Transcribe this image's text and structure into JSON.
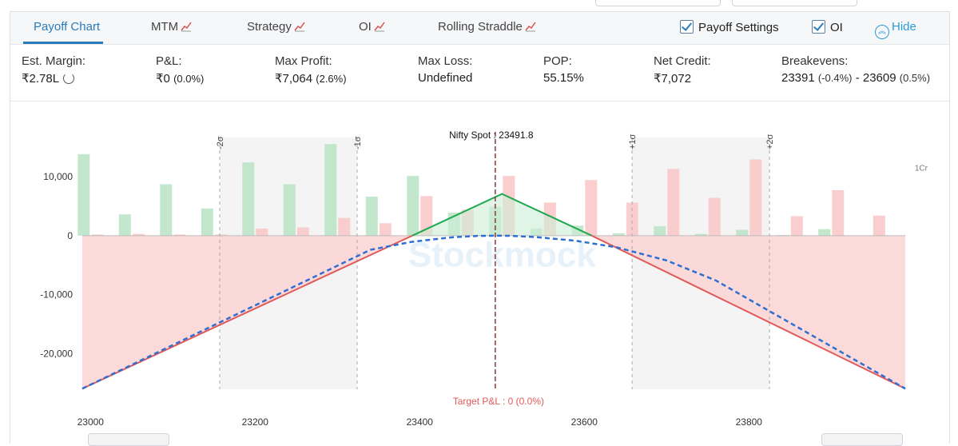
{
  "tabs": [
    {
      "label": "Payoff Chart",
      "active": true,
      "icon": ""
    },
    {
      "label": "MTM",
      "active": false,
      "icon": "chart-icon"
    },
    {
      "label": "Strategy",
      "active": false,
      "icon": "chart-icon"
    },
    {
      "label": "OI",
      "active": false,
      "icon": "chart-icon"
    },
    {
      "label": "Rolling Straddle",
      "active": false,
      "icon": "chart-icon"
    }
  ],
  "toggles": {
    "payoff_settings": {
      "label": "Payoff Settings",
      "checked": true
    },
    "oi": {
      "label": "OI",
      "checked": true
    },
    "hide": {
      "label": "Hide",
      "icon": "chevron-up-icon"
    }
  },
  "stats": {
    "margin": {
      "label": "Est. Margin:",
      "value": "₹2.78L"
    },
    "pnl": {
      "label": "P&L:",
      "value": "₹0",
      "pct": "(0.0%)"
    },
    "max_profit": {
      "label": "Max Profit:",
      "value": "₹7,064",
      "pct": "(2.6%)"
    },
    "max_loss": {
      "label": "Max Loss:",
      "value": "Undefined"
    },
    "pop": {
      "label": "POP:",
      "value": "55.15%"
    },
    "net_credit": {
      "label": "Net Credit:",
      "value": "₹7,072"
    },
    "breakevens": {
      "label": "Breakevens:",
      "lower": "23391",
      "lower_pct": "(-0.4%)",
      "sep": "-",
      "upper": "23609",
      "upper_pct": "(0.5%)"
    }
  },
  "colors": {
    "accent": "#2b7bb9",
    "profit": "#22a05a",
    "loss": "#e2555a",
    "target": "#2e6fd1",
    "spot": "#8a3a3a"
  },
  "watermark": "Stockmock",
  "chart_data": {
    "type": "line",
    "xlim": [
      22990,
      23990
    ],
    "ylim": [
      -26000,
      20000
    ],
    "x_ticks": [
      23000,
      23200,
      23400,
      23600,
      23800
    ],
    "x_tick_labels": [
      "23000",
      "23200",
      "23400",
      "23600",
      "23800"
    ],
    "y_ticks": [
      10000,
      0,
      -10000,
      -20000
    ],
    "y_tick_labels": [
      "10,000",
      "0",
      "-10,000",
      "-20,000"
    ],
    "oi_axis_label": "1Cr",
    "spot": {
      "x": 23491.8,
      "label": "Nifty Spot : 23491.8"
    },
    "target_label": "Target P&L : 0 (0.0%)",
    "sigma_bands": [
      {
        "label": "-2σ",
        "x": 23157
      },
      {
        "label": "-1σ",
        "x": 23324
      },
      {
        "label": "+1σ",
        "x": 23658
      },
      {
        "label": "+2σ",
        "x": 23825
      }
    ],
    "oi_bars": {
      "strikes": [
        23000,
        23050,
        23100,
        23150,
        23200,
        23250,
        23300,
        23350,
        23400,
        23450,
        23500,
        23550,
        23600,
        23650,
        23700,
        23750,
        23800,
        23850,
        23900,
        23950
      ],
      "calls": [
        200,
        300,
        200,
        200,
        1200,
        1400,
        3000,
        2100,
        6700,
        4400,
        10100,
        5600,
        9400,
        5600,
        11300,
        6400,
        12900,
        3300,
        7700,
        3400
      ],
      "puts": [
        13800,
        3600,
        8700,
        4600,
        12400,
        8700,
        15500,
        6600,
        10100,
        3900,
        4900,
        1200,
        1700,
        400,
        1600,
        300,
        1000,
        100,
        1100,
        0
      ]
    },
    "series": [
      {
        "name": "",
        "role": "expiry",
        "x": [
          22990,
          23391,
          23500,
          23609,
          23990
        ],
        "y": [
          -25900,
          0,
          7064,
          0,
          -25900
        ]
      },
      {
        "name": "",
        "role": "target",
        "x": [
          22990,
          23340,
          23390,
          23440,
          23470,
          23491.8,
          23510,
          23540,
          23590,
          23640,
          23700,
          23760,
          23990
        ],
        "y": [
          -25900,
          -2400,
          -1050,
          -270,
          -45,
          0,
          -30,
          -230,
          -870,
          -2000,
          -4200,
          -7600,
          -25900
        ]
      }
    ]
  }
}
